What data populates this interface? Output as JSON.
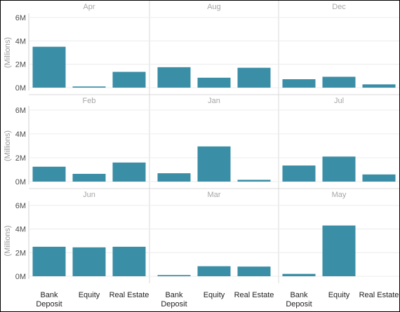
{
  "chart_data": {
    "type": "bar",
    "ylabel": "(Millions)",
    "ylim": [
      0,
      6
    ],
    "yticks": [
      0,
      2,
      4,
      6
    ],
    "ytick_labels": [
      "0M",
      "2M",
      "4M",
      "6M"
    ],
    "categories": [
      "Bank Deposit",
      "Equity",
      "Real Estate"
    ],
    "category_labels": [
      [
        "Bank",
        "Deposit"
      ],
      [
        "Equity"
      ],
      [
        "Real Estate"
      ]
    ],
    "grid": true,
    "bar_color": "#3a8ea6",
    "panels": [
      {
        "title": "Apr",
        "values": [
          3.5,
          0.1,
          1.35
        ]
      },
      {
        "title": "Aug",
        "values": [
          1.75,
          0.85,
          1.7
        ]
      },
      {
        "title": "Dec",
        "values": [
          0.72,
          0.93,
          0.28
        ]
      },
      {
        "title": "Feb",
        "values": [
          1.25,
          0.65,
          1.6
        ]
      },
      {
        "title": "Jan",
        "values": [
          0.7,
          2.95,
          0.15
        ]
      },
      {
        "title": "Jul",
        "values": [
          1.35,
          2.1,
          0.6
        ]
      },
      {
        "title": "Jun",
        "values": [
          2.5,
          2.45,
          2.5
        ]
      },
      {
        "title": "Mar",
        "values": [
          0.1,
          0.85,
          0.82
        ]
      },
      {
        "title": "May",
        "values": [
          0.2,
          4.3,
          0
        ]
      }
    ]
  }
}
